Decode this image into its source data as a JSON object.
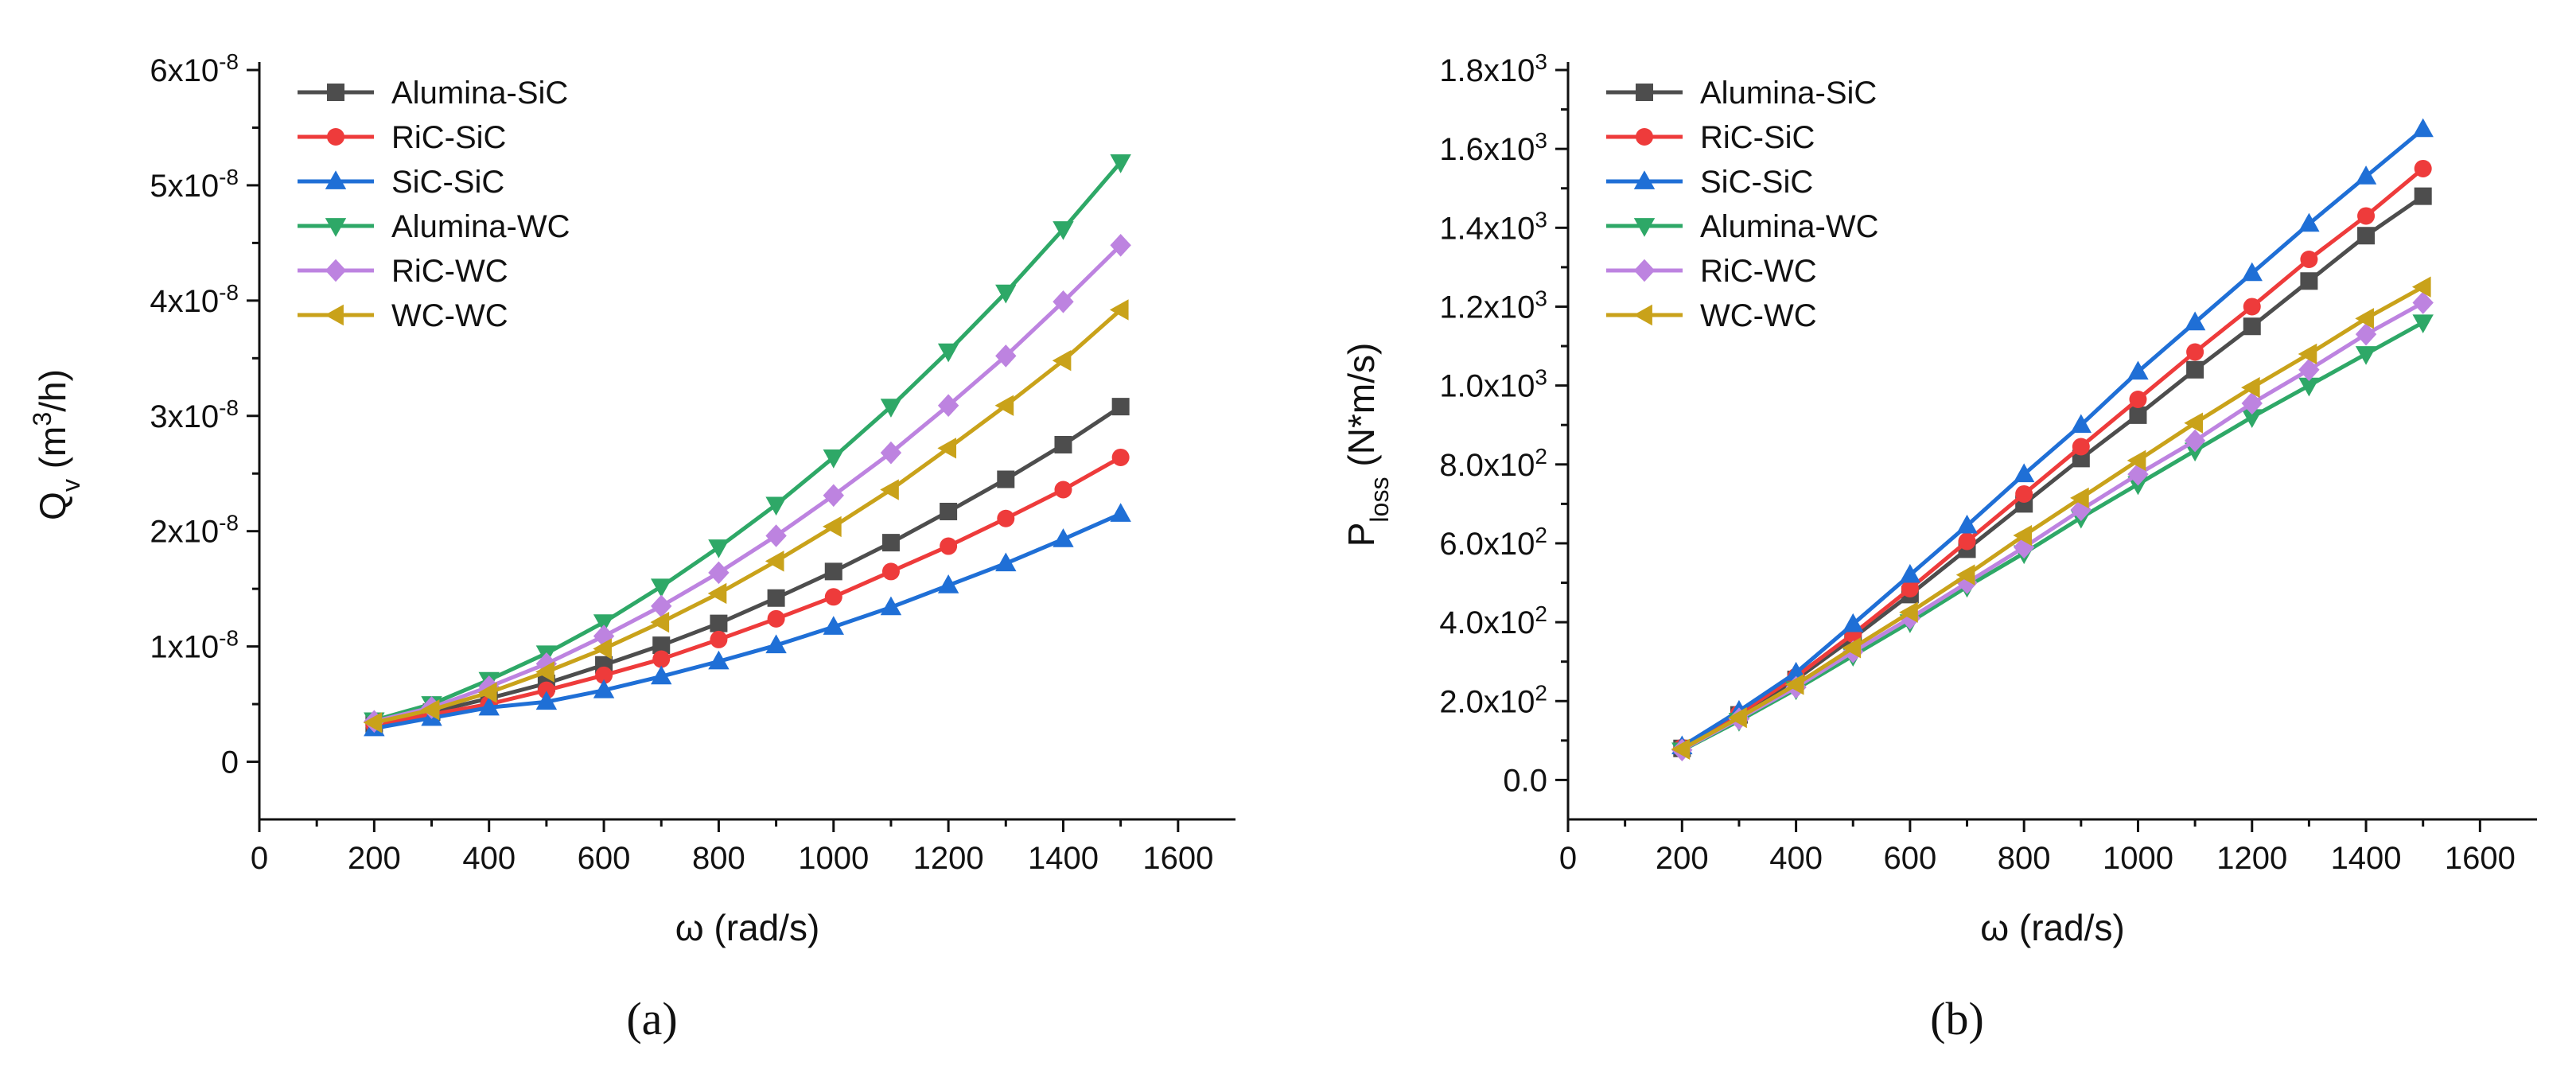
{
  "chart_data": [
    {
      "type": "line",
      "panel_label": "(a)",
      "xlabel": "ω (rad/s)",
      "ylabel": {
        "base": "Q",
        "sub": "v",
        "unit_pre": " (m",
        "unit_sup": "3",
        "unit_post": "/h)"
      },
      "xlim": [
        0,
        1700
      ],
      "ylim": [
        -5e-09,
        6e-08
      ],
      "xticks": [
        0,
        200,
        400,
        600,
        800,
        1000,
        1200,
        1400,
        1600
      ],
      "xtick_labels": [
        "0",
        "200",
        "400",
        "600",
        "800",
        "1000",
        "1200",
        "1400",
        "1600"
      ],
      "yticks": [
        0,
        1e-08,
        2e-08,
        3e-08,
        4e-08,
        5e-08,
        6e-08
      ],
      "ytick_labels": [
        {
          "mant": "0",
          "exp": ""
        },
        {
          "mant": "1x10",
          "exp": "-8"
        },
        {
          "mant": "2x10",
          "exp": "-8"
        },
        {
          "mant": "3x10",
          "exp": "-8"
        },
        {
          "mant": "4x10",
          "exp": "-8"
        },
        {
          "mant": "5x10",
          "exp": "-8"
        },
        {
          "mant": "6x10",
          "exp": "-8"
        }
      ],
      "legend_position": "top-left",
      "grid": false,
      "x": [
        200,
        300,
        400,
        500,
        600,
        700,
        800,
        900,
        1000,
        1100,
        1200,
        1300,
        1400,
        1500
      ],
      "series": [
        {
          "name": "Alumina-SiC",
          "color": "#4d4d4d",
          "marker": "square",
          "values": [
            3.3e-09,
            4.3e-09,
            5.5e-09,
            6.8e-09,
            8.4e-09,
            1.01e-08,
            1.2e-08,
            1.42e-08,
            1.65e-08,
            1.9e-08,
            2.17e-08,
            2.45e-08,
            2.75e-08,
            3.08e-08
          ]
        },
        {
          "name": "RiC-SiC",
          "color": "#ee3b3b",
          "marker": "circle",
          "values": [
            3.2e-09,
            4.1e-09,
            5e-09,
            6.2e-09,
            7.5e-09,
            8.9e-09,
            1.06e-08,
            1.24e-08,
            1.43e-08,
            1.65e-08,
            1.87e-08,
            2.11e-08,
            2.36e-08,
            2.64e-08
          ]
        },
        {
          "name": "SiC-SiC",
          "color": "#1f6fd6",
          "marker": "triangle-up",
          "values": [
            2.9e-09,
            3.8e-09,
            4.7e-09,
            5.2e-09,
            6.2e-09,
            7.4e-09,
            8.7e-09,
            1.01e-08,
            1.17e-08,
            1.34e-08,
            1.53e-08,
            1.72e-08,
            1.93e-08,
            2.15e-08
          ]
        },
        {
          "name": "Alumina-WC",
          "color": "#2ea867",
          "marker": "triangle-down",
          "values": [
            3.6e-09,
            5e-09,
            7.1e-09,
            9.4e-09,
            1.21e-08,
            1.52e-08,
            1.86e-08,
            2.23e-08,
            2.64e-08,
            3.08e-08,
            3.56e-08,
            4.07e-08,
            4.62e-08,
            5.2e-08
          ]
        },
        {
          "name": "RiC-WC",
          "color": "#bd83e0",
          "marker": "diamond",
          "values": [
            3.5e-09,
            4.7e-09,
            6.5e-09,
            8.5e-09,
            1.09e-08,
            1.35e-08,
            1.64e-08,
            1.96e-08,
            2.31e-08,
            2.68e-08,
            3.09e-08,
            3.52e-08,
            3.99e-08,
            4.48e-08
          ]
        },
        {
          "name": "WC-WC",
          "color": "#c9a21a",
          "marker": "triangle-left",
          "values": [
            3.4e-09,
            4.5e-09,
            6e-09,
            7.8e-09,
            9.8e-09,
            1.21e-08,
            1.46e-08,
            1.74e-08,
            2.04e-08,
            2.36e-08,
            2.72e-08,
            3.09e-08,
            3.48e-08,
            3.92e-08
          ]
        }
      ]
    },
    {
      "type": "line",
      "panel_label": "(b)",
      "xlabel": "ω (rad/s)",
      "ylabel": {
        "base": "P",
        "sub": "loss",
        "unit_pre": " (N*m/s)",
        "unit_sup": "",
        "unit_post": ""
      },
      "xlim": [
        0,
        1700
      ],
      "ylim": [
        -100,
        1800
      ],
      "xticks": [
        0,
        200,
        400,
        600,
        800,
        1000,
        1200,
        1400,
        1600
      ],
      "xtick_labels": [
        "0",
        "200",
        "400",
        "600",
        "800",
        "1000",
        "1200",
        "1400",
        "1600"
      ],
      "yticks": [
        0,
        200,
        400,
        600,
        800,
        1000,
        1200,
        1400,
        1600,
        1800
      ],
      "ytick_labels": [
        {
          "mant": "0.0",
          "exp": ""
        },
        {
          "mant": "2.0x10",
          "exp": "2"
        },
        {
          "mant": "4.0x10",
          "exp": "2"
        },
        {
          "mant": "6.0x10",
          "exp": "2"
        },
        {
          "mant": "8.0x10",
          "exp": "2"
        },
        {
          "mant": "1.0x10",
          "exp": "3"
        },
        {
          "mant": "1.2x10",
          "exp": "3"
        },
        {
          "mant": "1.4x10",
          "exp": "3"
        },
        {
          "mant": "1.6x10",
          "exp": "3"
        },
        {
          "mant": "1.8x10",
          "exp": "3"
        }
      ],
      "legend_position": "top-left",
      "grid": false,
      "x": [
        200,
        300,
        400,
        500,
        600,
        700,
        800,
        900,
        1000,
        1100,
        1200,
        1300,
        1400,
        1500
      ],
      "series": [
        {
          "name": "Alumina-SiC",
          "color": "#4d4d4d",
          "marker": "square",
          "values": [
            80,
            165,
            255,
            360,
            470,
            585,
            700,
            815,
            925,
            1040,
            1150,
            1265,
            1380,
            1480
          ]
        },
        {
          "name": "RiC-SiC",
          "color": "#ee3b3b",
          "marker": "circle",
          "values": [
            82,
            168,
            262,
            370,
            485,
            605,
            725,
            845,
            965,
            1085,
            1200,
            1320,
            1430,
            1550
          ]
        },
        {
          "name": "SiC-SiC",
          "color": "#1f6fd6",
          "marker": "triangle-up",
          "values": [
            85,
            175,
            272,
            395,
            520,
            645,
            775,
            900,
            1035,
            1160,
            1285,
            1410,
            1530,
            1650
          ]
        },
        {
          "name": "Alumina-WC",
          "color": "#2ea867",
          "marker": "triangle-down",
          "values": [
            75,
            150,
            230,
            315,
            400,
            490,
            575,
            665,
            750,
            835,
            920,
            1000,
            1080,
            1160
          ]
        },
        {
          "name": "RiC-WC",
          "color": "#bd83e0",
          "marker": "diamond",
          "values": [
            76,
            155,
            235,
            325,
            410,
            500,
            590,
            685,
            775,
            860,
            955,
            1040,
            1130,
            1210
          ]
        },
        {
          "name": "WC-WC",
          "color": "#c9a21a",
          "marker": "triangle-left",
          "values": [
            78,
            158,
            242,
            335,
            425,
            520,
            620,
            715,
            810,
            905,
            995,
            1080,
            1170,
            1250
          ]
        }
      ]
    }
  ]
}
